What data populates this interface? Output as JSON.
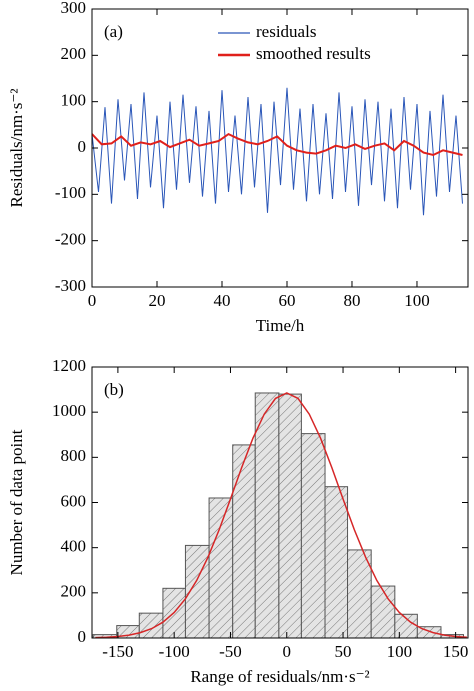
{
  "chart_data": [
    {
      "type": "line",
      "panel_label": "(a)",
      "xlabel": "Time/h",
      "ylabel": "Residuals/nm·s⁻²",
      "xlim": [
        0,
        115.7
      ],
      "xticks": [
        0,
        20,
        40,
        60,
        80,
        100
      ],
      "ylim": [
        -300,
        300
      ],
      "yticks": [
        -300,
        -200,
        -100,
        0,
        100,
        200,
        300
      ],
      "series": [
        {
          "name": "residuals",
          "color": "#2a56b8",
          "x": [
            0,
            2,
            4,
            6,
            8,
            10,
            12,
            14,
            16,
            18,
            20,
            22,
            24,
            26,
            28,
            30,
            32,
            34,
            36,
            38,
            40,
            42,
            44,
            46,
            48,
            50,
            52,
            54,
            56,
            58,
            60,
            62,
            64,
            66,
            68,
            70,
            72,
            74,
            76,
            78,
            80,
            82,
            84,
            86,
            88,
            90,
            92,
            94,
            96,
            98,
            100,
            102,
            104,
            106,
            108,
            110,
            112,
            114
          ],
          "values": [
            30,
            -95,
            88,
            -120,
            105,
            -70,
            95,
            -110,
            120,
            -85,
            70,
            -130,
            100,
            -90,
            115,
            -75,
            90,
            -105,
            80,
            -120,
            125,
            -95,
            70,
            -100,
            110,
            -85,
            95,
            -140,
            100,
            -80,
            130,
            -90,
            85,
            -115,
            95,
            -100,
            75,
            -110,
            120,
            -95,
            90,
            -125,
            105,
            -80,
            100,
            -115,
            85,
            -130,
            110,
            -90,
            95,
            -145,
            80,
            -105,
            115,
            -95,
            70,
            -120
          ]
        },
        {
          "name": "smoothed results",
          "color": "#e0201b",
          "x": [
            0,
            3,
            6,
            9,
            12,
            15,
            18,
            21,
            24,
            27,
            30,
            33,
            36,
            39,
            42,
            45,
            48,
            51,
            54,
            57,
            60,
            63,
            66,
            69,
            72,
            75,
            78,
            81,
            84,
            87,
            90,
            93,
            96,
            99,
            102,
            105,
            108,
            111,
            114
          ],
          "values": [
            30,
            8,
            10,
            25,
            5,
            12,
            8,
            15,
            2,
            10,
            18,
            5,
            10,
            15,
            30,
            20,
            12,
            8,
            15,
            25,
            5,
            -5,
            -10,
            -12,
            -5,
            5,
            0,
            8,
            -2,
            5,
            10,
            -5,
            15,
            5,
            -10,
            -15,
            -5,
            -10,
            -15
          ]
        }
      ]
    },
    {
      "type": "histogram",
      "panel_label": "(b)",
      "xlabel": "Range of residuals/nm·s⁻²",
      "ylabel": "Number of data point",
      "xlim": [
        -173,
        161
      ],
      "xticks": [
        -150,
        -100,
        -50,
        0,
        50,
        100,
        150
      ],
      "ylim": [
        0,
        1200
      ],
      "yticks": [
        0,
        200,
        400,
        600,
        800,
        1000,
        1200
      ],
      "color": "#555555",
      "bins": [
        -172,
        -151,
        -131,
        -110,
        -90,
        -69,
        -48,
        -28,
        -7,
        13,
        34,
        54,
        75,
        96,
        116,
        137,
        157
      ],
      "counts": [
        15,
        55,
        110,
        220,
        410,
        620,
        855,
        1085,
        1080,
        905,
        670,
        390,
        230,
        105,
        50,
        15
      ],
      "fit": {
        "color": "#d62728",
        "x": [
          -170,
          -160,
          -150,
          -140,
          -130,
          -120,
          -110,
          -100,
          -90,
          -80,
          -70,
          -60,
          -50,
          -40,
          -30,
          -20,
          -10,
          0,
          10,
          20,
          30,
          40,
          50,
          60,
          70,
          80,
          90,
          100,
          110,
          120,
          130,
          140,
          150,
          160
        ],
        "values": [
          1.6,
          3.3,
          6.7,
          12.8,
          23.7,
          41.7,
          70,
          113,
          173.5,
          255,
          358,
          480,
          616,
          755,
          885,
          991,
          1061,
          1085,
          1061,
          991,
          885,
          755,
          616,
          480,
          358,
          255,
          173.5,
          113,
          70,
          41.7,
          23.7,
          12.8,
          6.7,
          3.3
        ]
      }
    }
  ]
}
